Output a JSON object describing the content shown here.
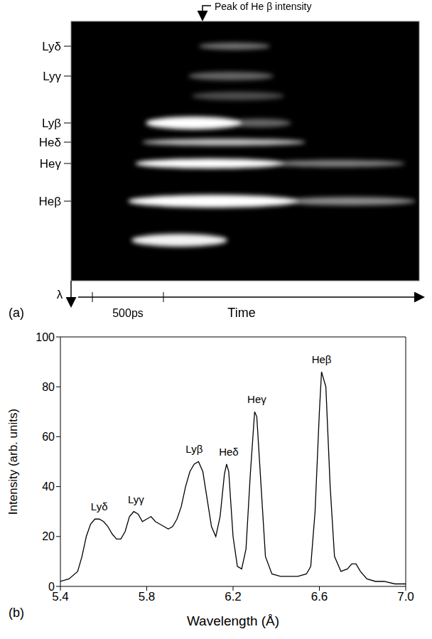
{
  "streak_image": {
    "panel_label": "(a)",
    "annotation": "Peak of He β intensity",
    "line_labels": [
      "Lyδ",
      "Lyγ",
      "Lyβ",
      "Heδ",
      "Heγ",
      "Heβ"
    ],
    "wavelength_axis_label": "λ",
    "time_axis_label": "Time",
    "scale_bar_label": "500ps"
  },
  "chart_data": {
    "type": "line",
    "panel_label": "(b)",
    "x_label": "Wavelength (Å)",
    "y_label": "Intensity (arb. units)",
    "xlim": [
      5.4,
      7.0
    ],
    "xticks": [
      5.4,
      5.8,
      6.2,
      6.6,
      {
        "value": 7,
        "label": "7.0"
      }
    ],
    "ylim": [
      0,
      100
    ],
    "yticks": [
      0,
      20,
      40,
      60,
      80,
      100
    ],
    "grid": false,
    "color": "#000000",
    "x": [
      5.4,
      5.44,
      5.48,
      5.5,
      5.52,
      5.54,
      5.56,
      5.58,
      5.6,
      5.62,
      5.64,
      5.66,
      5.68,
      5.7,
      5.72,
      5.74,
      5.76,
      5.78,
      5.8,
      5.82,
      5.84,
      5.86,
      5.88,
      5.9,
      5.92,
      5.94,
      5.96,
      5.98,
      6.0,
      6.02,
      6.04,
      6.06,
      6.08,
      6.1,
      6.12,
      6.14,
      6.16,
      6.17,
      6.18,
      6.2,
      6.22,
      6.24,
      6.26,
      6.28,
      6.3,
      6.31,
      6.33,
      6.35,
      6.38,
      6.42,
      6.46,
      6.5,
      6.54,
      6.56,
      6.58,
      6.6,
      6.61,
      6.63,
      6.65,
      6.67,
      6.7,
      6.73,
      6.75,
      6.77,
      6.79,
      6.82,
      6.86,
      6.9,
      6.95,
      7.0
    ],
    "values": [
      2,
      3,
      6,
      12,
      20,
      25,
      27,
      27,
      26,
      24,
      21,
      19,
      19,
      22,
      28,
      30,
      29,
      26,
      27,
      28,
      26,
      25,
      24,
      23,
      24,
      27,
      32,
      40,
      46,
      49,
      50,
      46,
      35,
      24,
      20,
      28,
      45,
      49,
      46,
      20,
      8,
      7,
      15,
      45,
      70,
      68,
      40,
      12,
      5,
      4,
      4,
      4,
      5,
      8,
      30,
      70,
      86,
      80,
      40,
      12,
      6,
      7,
      9,
      9,
      6,
      3,
      2,
      2,
      1,
      1
    ],
    "annotations": [
      {
        "text": "Lyδ",
        "x": 5.58,
        "y": 29
      },
      {
        "text": "Lyγ",
        "x": 5.75,
        "y": 32
      },
      {
        "text": "Lyβ",
        "x": 6.02,
        "y": 52
      },
      {
        "text": "Heδ",
        "x": 6.18,
        "y": 51
      },
      {
        "text": "Heγ",
        "x": 6.31,
        "y": 72
      },
      {
        "text": "Heβ",
        "x": 6.61,
        "y": 88
      }
    ]
  }
}
